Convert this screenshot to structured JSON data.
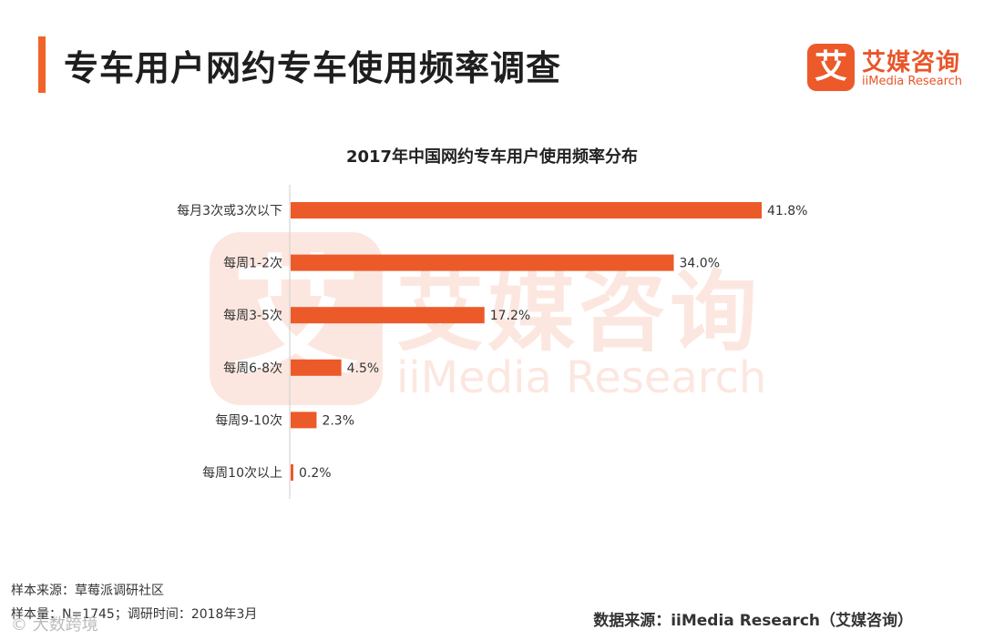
{
  "header": {
    "title": "专车用户网约专车使用频率调查"
  },
  "logo": {
    "mark": "艾",
    "name_cn": "艾媒咨询",
    "name_en": "iiMedia Research"
  },
  "watermark": {
    "mark": "艾",
    "name_cn": "艾媒咨询",
    "name_en": "iiMedia Research"
  },
  "colors": {
    "accent": "#f0642a",
    "bar": "#ec5a2a",
    "axis": "#cccccc"
  },
  "chart_data": {
    "type": "bar",
    "orientation": "horizontal",
    "title": "2017年中国网约专车用户使用频率分布",
    "categories": [
      "每月3次或3次以下",
      "每周1-2次",
      "每周3-5次",
      "每周6-8次",
      "每周9-10次",
      "每周10次以上"
    ],
    "values": [
      41.8,
      34.0,
      17.2,
      4.5,
      2.3,
      0.2
    ],
    "labels": [
      "41.8%",
      "34.0%",
      "17.2%",
      "4.5%",
      "2.3%",
      "0.2%"
    ],
    "unit": "%",
    "xlim": [
      0,
      41.8
    ],
    "grid": false,
    "legend": "none"
  },
  "footer": {
    "sample_source": "样本来源：草莓派调研社区",
    "sample_info": "样本量：N=1745；调研时间：2018年3月",
    "data_source": "数据来源：iiMedia Research（艾媒咨询）",
    "overlay_watermark": "© 大数跨境"
  }
}
